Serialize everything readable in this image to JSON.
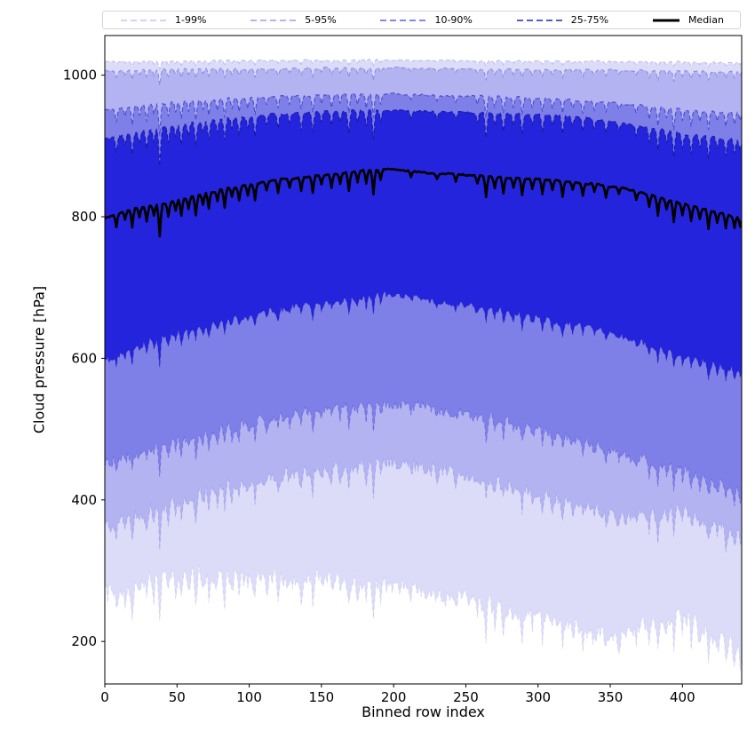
{
  "figure": {
    "xlabel": "Binned row index",
    "ylabel": "Cloud pressure [hPa]"
  },
  "legend": {
    "items": [
      {
        "label": "1-99%",
        "color": "#c3c3f0",
        "style": "dashed"
      },
      {
        "label": "5-95%",
        "color": "#9a9ae8",
        "style": "dashed"
      },
      {
        "label": "10-90%",
        "color": "#5e5ee0",
        "style": "dashed"
      },
      {
        "label": "25-75%",
        "color": "#2222bb",
        "style": "dashed"
      },
      {
        "label": "Median",
        "color": "#000000",
        "style": "solid"
      }
    ]
  },
  "chart_data": {
    "type": "area",
    "title": "",
    "xlabel": "Binned row index",
    "ylabel": "Cloud pressure [hPa]",
    "x_ticks": [
      0,
      50,
      100,
      150,
      200,
      250,
      300,
      350,
      400
    ],
    "y_ticks": [
      200,
      400,
      600,
      800,
      1000
    ],
    "xlim": [
      0,
      441
    ],
    "ylim_inverted": [
      1056,
      140
    ],
    "grid": false,
    "legend_position": "top",
    "x_sample": [
      0,
      20,
      40,
      60,
      80,
      100,
      120,
      140,
      160,
      180,
      200,
      220,
      240,
      260,
      280,
      300,
      320,
      340,
      360,
      380,
      400,
      420,
      440
    ],
    "percentiles": {
      "p99": [
        1019,
        1020,
        1020,
        1020,
        1021,
        1021,
        1021,
        1021,
        1021,
        1022,
        1021,
        1021,
        1021,
        1020,
        1020,
        1020,
        1020,
        1020,
        1019,
        1019,
        1019,
        1018,
        1018
      ],
      "p95": [
        1006,
        1007,
        1008,
        1008,
        1009,
        1009,
        1009,
        1009,
        1010,
        1010,
        1010,
        1009,
        1009,
        1009,
        1008,
        1008,
        1008,
        1007,
        1007,
        1006,
        1006,
        1005,
        1005
      ],
      "p90": [
        950,
        956,
        960,
        963,
        966,
        968,
        970,
        971,
        972,
        973,
        973,
        972,
        971,
        970,
        969,
        968,
        966,
        963,
        959,
        955,
        951,
        948,
        946
      ],
      "p75": [
        910,
        918,
        926,
        932,
        938,
        942,
        945,
        947,
        949,
        950,
        950,
        949,
        948,
        947,
        946,
        944,
        942,
        938,
        932,
        925,
        917,
        912,
        908
      ],
      "median": [
        798,
        812,
        818,
        828,
        838,
        845,
        852,
        856,
        860,
        866,
        868,
        862,
        860,
        858,
        855,
        853,
        850,
        846,
        840,
        830,
        818,
        808,
        798
      ],
      "p25": [
        595,
        615,
        630,
        642,
        652,
        661,
        668,
        675,
        681,
        687,
        690,
        684,
        678,
        671,
        664,
        657,
        649,
        641,
        630,
        617,
        604,
        592,
        582
      ],
      "p10": [
        450,
        466,
        478,
        489,
        498,
        508,
        517,
        524,
        530,
        535,
        537,
        531,
        524,
        517,
        509,
        500,
        489,
        477,
        462,
        452,
        445,
        425,
        412
      ],
      "p05": [
        360,
        378,
        392,
        405,
        416,
        426,
        435,
        441,
        446,
        450,
        452,
        446,
        438,
        430,
        421,
        411,
        399,
        386,
        372,
        378,
        388,
        368,
        352
      ],
      "p01": [
        265,
        280,
        290,
        296,
        294,
        290,
        286,
        289,
        292,
        285,
        278,
        270,
        262,
        255,
        245,
        237,
        227,
        214,
        205,
        230,
        238,
        208,
        190
      ]
    },
    "bands": [
      {
        "label": "1-99%",
        "upper": "p99",
        "lower": "p01",
        "fill": "#dcdcf8",
        "edge": "#bdbdef"
      },
      {
        "label": "5-95%",
        "upper": "p95",
        "lower": "p05",
        "fill": "#b3b3f1",
        "edge": "#8c8ce4"
      },
      {
        "label": "10-90%",
        "upper": "p90",
        "lower": "p10",
        "fill": "#7f7fe8",
        "edge": "#4a4ad0"
      },
      {
        "label": "25-75%",
        "upper": "p75",
        "lower": "p25",
        "fill": "#2424dc",
        "edge": "#1a1aa0"
      }
    ],
    "median_style": {
      "color": "#000000",
      "width": 2.6
    },
    "spikes": [
      {
        "x": 8,
        "d": 18
      },
      {
        "x": 14,
        "d": 12
      },
      {
        "x": 19,
        "d": 26
      },
      {
        "x": 24,
        "d": 14
      },
      {
        "x": 29,
        "d": 22
      },
      {
        "x": 34,
        "d": 16
      },
      {
        "x": 38,
        "d": 46
      },
      {
        "x": 44,
        "d": 20
      },
      {
        "x": 49,
        "d": 14
      },
      {
        "x": 53,
        "d": 24
      },
      {
        "x": 58,
        "d": 16
      },
      {
        "x": 63,
        "d": 28
      },
      {
        "x": 68,
        "d": 14
      },
      {
        "x": 72,
        "d": 22
      },
      {
        "x": 78,
        "d": 16
      },
      {
        "x": 83,
        "d": 26
      },
      {
        "x": 88,
        "d": 14
      },
      {
        "x": 93,
        "d": 20
      },
      {
        "x": 99,
        "d": 14
      },
      {
        "x": 104,
        "d": 24
      },
      {
        "x": 112,
        "d": 12
      },
      {
        "x": 120,
        "d": 18
      },
      {
        "x": 128,
        "d": 12
      },
      {
        "x": 136,
        "d": 20
      },
      {
        "x": 144,
        "d": 24
      },
      {
        "x": 150,
        "d": 12
      },
      {
        "x": 157,
        "d": 18
      },
      {
        "x": 163,
        "d": 14
      },
      {
        "x": 169,
        "d": 26
      },
      {
        "x": 175,
        "d": 16
      },
      {
        "x": 181,
        "d": 20
      },
      {
        "x": 186,
        "d": 34
      },
      {
        "x": 191,
        "d": 14
      },
      {
        "x": 212,
        "d": 8
      },
      {
        "x": 230,
        "d": 8
      },
      {
        "x": 243,
        "d": 10
      },
      {
        "x": 258,
        "d": 12
      },
      {
        "x": 264,
        "d": 30
      },
      {
        "x": 270,
        "d": 16
      },
      {
        "x": 276,
        "d": 22
      },
      {
        "x": 283,
        "d": 14
      },
      {
        "x": 289,
        "d": 24
      },
      {
        "x": 296,
        "d": 14
      },
      {
        "x": 303,
        "d": 20
      },
      {
        "x": 310,
        "d": 14
      },
      {
        "x": 317,
        "d": 22
      },
      {
        "x": 324,
        "d": 12
      },
      {
        "x": 331,
        "d": 18
      },
      {
        "x": 339,
        "d": 12
      },
      {
        "x": 347,
        "d": 16
      },
      {
        "x": 356,
        "d": 10
      },
      {
        "x": 368,
        "d": 12
      },
      {
        "x": 377,
        "d": 18
      },
      {
        "x": 383,
        "d": 26
      },
      {
        "x": 389,
        "d": 14
      },
      {
        "x": 394,
        "d": 30
      },
      {
        "x": 400,
        "d": 16
      },
      {
        "x": 406,
        "d": 22
      },
      {
        "x": 412,
        "d": 14
      },
      {
        "x": 418,
        "d": 26
      },
      {
        "x": 424,
        "d": 14
      },
      {
        "x": 430,
        "d": 20
      },
      {
        "x": 436,
        "d": 16
      },
      {
        "x": 440,
        "d": 12
      }
    ]
  }
}
